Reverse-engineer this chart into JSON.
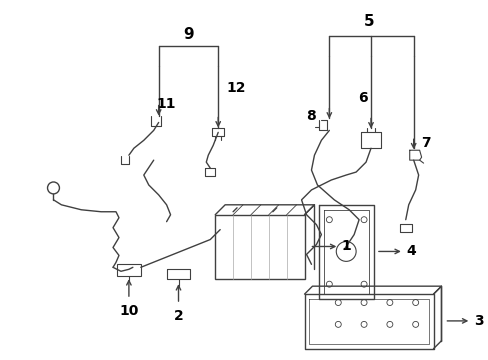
{
  "background_color": "#ffffff",
  "line_color": "#404040",
  "figsize": [
    4.89,
    3.6
  ],
  "dpi": 100,
  "lw": 1.0
}
